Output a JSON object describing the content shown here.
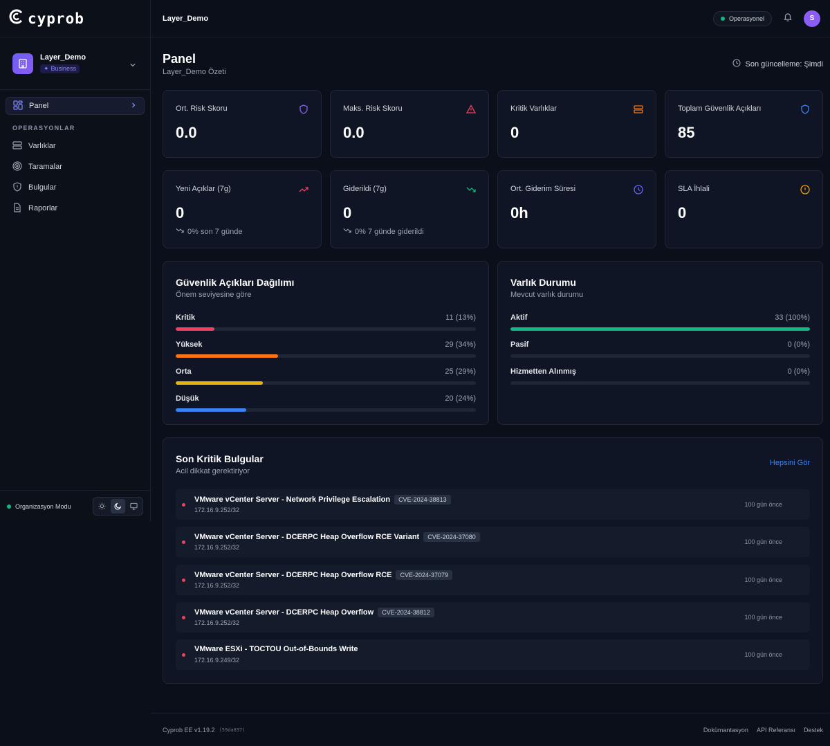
{
  "brand": {
    "name": "cyprob"
  },
  "org": {
    "name": "Layer_Demo",
    "plan": "Business"
  },
  "sidebar": {
    "active": {
      "label": "Panel"
    },
    "section_label": "OPERASYONLAR",
    "items": [
      {
        "label": "Varlıklar",
        "icon": "server-icon"
      },
      {
        "label": "Taramalar",
        "icon": "radar-icon"
      },
      {
        "label": "Bulgular",
        "icon": "shield-alert-icon"
      },
      {
        "label": "Raporlar",
        "icon": "file-text-icon"
      }
    ],
    "footer_label": "Organizasyon Modu"
  },
  "topbar": {
    "title": "Layer_Demo",
    "status": "Operasyonel",
    "avatar_initial": "S"
  },
  "page": {
    "title": "Panel",
    "subtitle": "Layer_Demo Özeti",
    "updated": "Son güncelleme: Şimdi"
  },
  "stats_row1": [
    {
      "label": "Ort. Risk Skoru",
      "value": "0.0",
      "icon": "shield-icon",
      "color": "#8b5cf6"
    },
    {
      "label": "Maks. Risk Skoru",
      "value": "0.0",
      "icon": "alert-triangle-icon",
      "color": "#f43f5e"
    },
    {
      "label": "Kritik Varlıklar",
      "value": "0",
      "icon": "server-icon",
      "color": "#f97316"
    },
    {
      "label": "Toplam Güvenlik Açıkları",
      "value": "85",
      "icon": "shield-icon",
      "color": "#3b82f6"
    }
  ],
  "stats_row2": [
    {
      "label": "Yeni Açıklar (7g)",
      "value": "0",
      "icon": "trending-up-icon",
      "color": "#f43f5e",
      "trend": "0% son 7 günde"
    },
    {
      "label": "Giderildi (7g)",
      "value": "0",
      "icon": "trending-down-icon",
      "color": "#10b981",
      "trend": "0% 7 günde giderildi"
    },
    {
      "label": "Ort. Giderim Süresi",
      "value": "0h",
      "icon": "clock-icon",
      "color": "#6366f1"
    },
    {
      "label": "SLA İhlali",
      "value": "0",
      "icon": "alert-circle-icon",
      "color": "#f59e0b"
    }
  ],
  "vuln_dist": {
    "title": "Güvenlik Açıkları Dağılımı",
    "subtitle": "Önem seviyesine göre",
    "rows": [
      {
        "label": "Kritik",
        "value": "11 (13%)",
        "fraction": 0.13,
        "color": "#f43f5e"
      },
      {
        "label": "Yüksek",
        "value": "29 (34%)",
        "fraction": 0.34,
        "color": "#f97316"
      },
      {
        "label": "Orta",
        "value": "25 (29%)",
        "fraction": 0.29,
        "color": "#eab308"
      },
      {
        "label": "Düşük",
        "value": "20 (24%)",
        "fraction": 0.235,
        "color": "#3b82f6"
      }
    ]
  },
  "asset_status": {
    "title": "Varlık Durumu",
    "subtitle": "Mevcut varlık durumu",
    "rows": [
      {
        "label": "Aktif",
        "value": "33 (100%)",
        "fraction": 1.0,
        "color": "#10b981"
      },
      {
        "label": "Pasif",
        "value": "0 (0%)",
        "fraction": 0,
        "color": "#10b981"
      },
      {
        "label": "Hizmetten Alınmış",
        "value": "0 (0%)",
        "fraction": 0,
        "color": "#10b981"
      }
    ]
  },
  "findings": {
    "title": "Son Kritik Bulgular",
    "subtitle": "Acil dikkat gerektiriyor",
    "see_all": "Hepsini Gör",
    "items": [
      {
        "title": "VMware vCenter Server - Network Privilege Escalation",
        "cve": "CVE-2024-38813",
        "ip": "172.16.9.252/32",
        "time": "100 gün önce"
      },
      {
        "title": "VMware vCenter Server - DCERPC Heap Overflow RCE Variant",
        "cve": "CVE-2024-37080",
        "ip": "172.16.9.252/32",
        "time": "100 gün önce"
      },
      {
        "title": "VMware vCenter Server - DCERPC Heap Overflow RCE",
        "cve": "CVE-2024-37079",
        "ip": "172.16.9.252/32",
        "time": "100 gün önce"
      },
      {
        "title": "VMware vCenter Server - DCERPC Heap Overflow",
        "cve": "CVE-2024-38812",
        "ip": "172.16.9.252/32",
        "time": "100 gün önce"
      },
      {
        "title": "VMware ESXi - TOCTOU Out-of-Bounds Write",
        "cve": "",
        "ip": "172.16.9.249/32",
        "time": "100 gün önce"
      }
    ]
  },
  "footer": {
    "version": "Cyprob EE v1.19.2",
    "hash": "(59da837)",
    "links": [
      "Dokümantasyon",
      "API Referansı",
      "Destek"
    ]
  }
}
